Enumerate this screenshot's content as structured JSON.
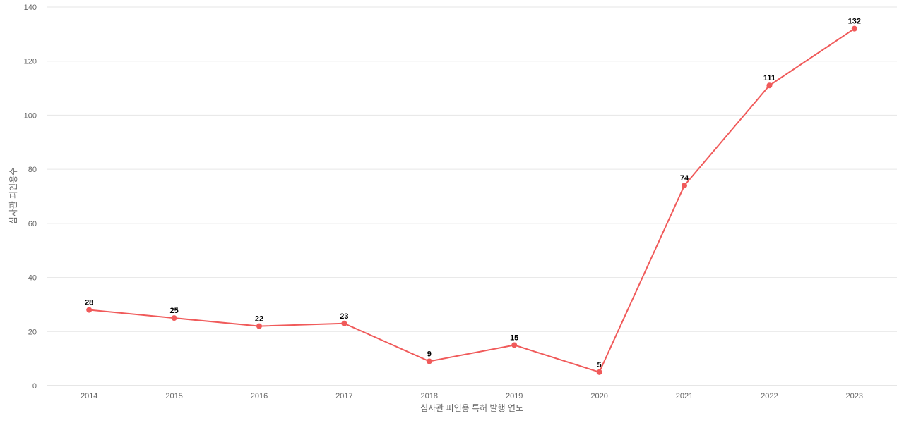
{
  "chart_data": {
    "type": "line",
    "title": "",
    "xlabel": "심사관 피인용 특허 발행 연도",
    "ylabel": "심사관 피인용수",
    "ylim": [
      0,
      140
    ],
    "yticks": [
      0,
      20,
      40,
      60,
      80,
      100,
      120,
      140
    ],
    "categories": [
      "2014",
      "2015",
      "2016",
      "2017",
      "2018",
      "2019",
      "2020",
      "2021",
      "2022",
      "2023"
    ],
    "series": [
      {
        "values": [
          28,
          25,
          22,
          23,
          9,
          15,
          5,
          74,
          111,
          132
        ],
        "color": "#f05a5a"
      }
    ],
    "grid": true,
    "legend": "none",
    "data_labels": true
  }
}
